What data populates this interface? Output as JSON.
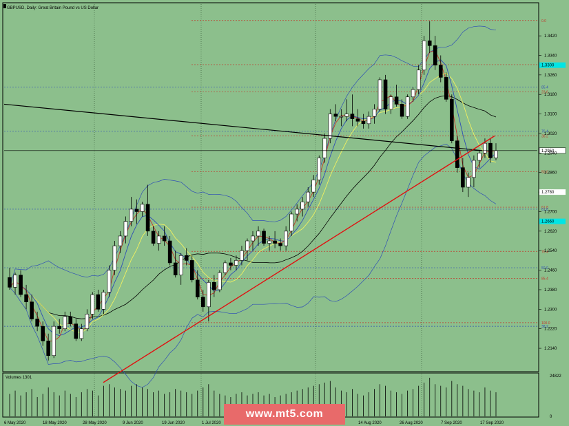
{
  "chart_data": {
    "type": "candlestick",
    "title": "GBPUSD, Daily: Great Britain Pound vs US Dollar",
    "volume_label": "Volumes 1301",
    "volume_max_label": "24822",
    "volume_zero_label": "0",
    "price_label": "1.2950",
    "level_label_1": "1.2780",
    "level_label_2": "1.2660",
    "level_label_3": "1.3300",
    "ylim": [
      1.205,
      1.355
    ],
    "yticks": [
      "1.3420",
      "1.3340",
      "1.3260",
      "1.3180",
      "1.3100",
      "1.3020",
      "1.2940",
      "1.2860",
      "1.2780",
      "1.2700",
      "1.2620",
      "1.2540",
      "1.2460",
      "1.2380",
      "1.2300",
      "1.2220",
      "1.2140"
    ],
    "xtick_labels": [
      "6 May 2020",
      "18 May 2020",
      "28 May 2020",
      "9 Jun 2020",
      "19 Jun 2020",
      "1 Jul 2020",
      "14 Aug 2020",
      "26 Aug 2020",
      "7 Sep 2020",
      "17 Sep 2020"
    ],
    "fib_levels": [
      {
        "label": "0.0",
        "price": 1.3483
      },
      {
        "label": "14.6",
        "price": 1.3302
      },
      {
        "label": "23.6",
        "price": 1.319
      },
      {
        "label": "38.2",
        "price": 1.301
      },
      {
        "label": "50.0",
        "price": 1.2864
      },
      {
        "label": "61.8",
        "price": 1.2718
      },
      {
        "label": "76.4",
        "price": 1.2537
      },
      {
        "label": "85.4",
        "price": 1.2426
      },
      {
        "label": "100.0",
        "price": 1.2245
      }
    ],
    "fib_levels_blue": [
      {
        "label": "85.4",
        "price": 1.321
      },
      {
        "label": "76.4",
        "price": 1.303
      },
      {
        "label": "61.8",
        "price": 1.271
      },
      {
        "label": "50.0",
        "price": 1.247
      },
      {
        "label": "38.2",
        "price": 1.223
      }
    ],
    "candles": [
      [
        1.243,
        1.247,
        1.238,
        1.239
      ],
      [
        1.239,
        1.245,
        1.236,
        1.244
      ],
      [
        1.244,
        1.246,
        1.235,
        1.236
      ],
      [
        1.236,
        1.24,
        1.23,
        1.233
      ],
      [
        1.233,
        1.236,
        1.225,
        1.226
      ],
      [
        1.226,
        1.229,
        1.221,
        1.223
      ],
      [
        1.223,
        1.225,
        1.215,
        1.217
      ],
      [
        1.217,
        1.22,
        1.209,
        1.211
      ],
      [
        1.211,
        1.225,
        1.21,
        1.223
      ],
      [
        1.223,
        1.226,
        1.22,
        1.222
      ],
      [
        1.222,
        1.229,
        1.221,
        1.227
      ],
      [
        1.227,
        1.229,
        1.223,
        1.224
      ],
      [
        1.224,
        1.226,
        1.217,
        1.218
      ],
      [
        1.218,
        1.224,
        1.217,
        1.222
      ],
      [
        1.222,
        1.23,
        1.221,
        1.228
      ],
      [
        1.228,
        1.237,
        1.226,
        1.236
      ],
      [
        1.236,
        1.238,
        1.229,
        1.23
      ],
      [
        1.23,
        1.238,
        1.228,
        1.237
      ],
      [
        1.237,
        1.248,
        1.235,
        1.246
      ],
      [
        1.246,
        1.258,
        1.244,
        1.256
      ],
      [
        1.256,
        1.262,
        1.253,
        1.26
      ],
      [
        1.26,
        1.268,
        1.257,
        1.266
      ],
      [
        1.266,
        1.276,
        1.264,
        1.271
      ],
      [
        1.271,
        1.275,
        1.265,
        1.27
      ],
      [
        1.27,
        1.274,
        1.268,
        1.273
      ],
      [
        1.273,
        1.281,
        1.26,
        1.262
      ],
      [
        1.262,
        1.264,
        1.256,
        1.257
      ],
      [
        1.257,
        1.262,
        1.254,
        1.26
      ],
      [
        1.26,
        1.264,
        1.256,
        1.258
      ],
      [
        1.258,
        1.26,
        1.248,
        1.249
      ],
      [
        1.249,
        1.254,
        1.243,
        1.244
      ],
      [
        1.244,
        1.253,
        1.24,
        1.252
      ],
      [
        1.252,
        1.255,
        1.248,
        1.25
      ],
      [
        1.25,
        1.252,
        1.241,
        1.242
      ],
      [
        1.242,
        1.246,
        1.234,
        1.235
      ],
      [
        1.235,
        1.238,
        1.229,
        1.231
      ],
      [
        1.231,
        1.242,
        1.225,
        1.241
      ],
      [
        1.241,
        1.244,
        1.235,
        1.238
      ],
      [
        1.238,
        1.246,
        1.237,
        1.245
      ],
      [
        1.245,
        1.25,
        1.244,
        1.249
      ],
      [
        1.249,
        1.251,
        1.246,
        1.248
      ],
      [
        1.248,
        1.252,
        1.246,
        1.25
      ],
      [
        1.25,
        1.256,
        1.248,
        1.254
      ],
      [
        1.254,
        1.259,
        1.25,
        1.258
      ],
      [
        1.258,
        1.262,
        1.254,
        1.26
      ],
      [
        1.26,
        1.264,
        1.256,
        1.262
      ],
      [
        1.262,
        1.263,
        1.256,
        1.257
      ],
      [
        1.257,
        1.26,
        1.254,
        1.258
      ],
      [
        1.258,
        1.262,
        1.255,
        1.257
      ],
      [
        1.257,
        1.259,
        1.254,
        1.256
      ],
      [
        1.256,
        1.264,
        1.254,
        1.262
      ],
      [
        1.262,
        1.27,
        1.26,
        1.269
      ],
      [
        1.269,
        1.273,
        1.266,
        1.271
      ],
      [
        1.271,
        1.276,
        1.268,
        1.274
      ],
      [
        1.274,
        1.28,
        1.272,
        1.278
      ],
      [
        1.278,
        1.285,
        1.276,
        1.283
      ],
      [
        1.283,
        1.293,
        1.281,
        1.292
      ],
      [
        1.292,
        1.302,
        1.29,
        1.3
      ],
      [
        1.3,
        1.312,
        1.298,
        1.31
      ],
      [
        1.31,
        1.314,
        1.307,
        1.309
      ],
      [
        1.309,
        1.312,
        1.305,
        1.309
      ],
      [
        1.309,
        1.316,
        1.307,
        1.31
      ],
      [
        1.31,
        1.318,
        1.305,
        1.308
      ],
      [
        1.308,
        1.312,
        1.305,
        1.307
      ],
      [
        1.307,
        1.31,
        1.304,
        1.306
      ],
      [
        1.306,
        1.311,
        1.304,
        1.309
      ],
      [
        1.309,
        1.314,
        1.306,
        1.312
      ],
      [
        1.312,
        1.325,
        1.311,
        1.324
      ],
      [
        1.324,
        1.326,
        1.31,
        1.312
      ],
      [
        1.312,
        1.318,
        1.31,
        1.317
      ],
      [
        1.317,
        1.322,
        1.313,
        1.314
      ],
      [
        1.314,
        1.316,
        1.308,
        1.309
      ],
      [
        1.309,
        1.318,
        1.308,
        1.317
      ],
      [
        1.317,
        1.321,
        1.315,
        1.32
      ],
      [
        1.32,
        1.33,
        1.318,
        1.328
      ],
      [
        1.328,
        1.342,
        1.326,
        1.34
      ],
      [
        1.34,
        1.348,
        1.335,
        1.338
      ],
      [
        1.338,
        1.342,
        1.328,
        1.33
      ],
      [
        1.33,
        1.334,
        1.323,
        1.325
      ],
      [
        1.325,
        1.327,
        1.315,
        1.316
      ],
      [
        1.316,
        1.318,
        1.298,
        1.299
      ],
      [
        1.299,
        1.301,
        1.286,
        1.288
      ],
      [
        1.288,
        1.292,
        1.278,
        1.28
      ],
      [
        1.28,
        1.286,
        1.276,
        1.284
      ],
      [
        1.284,
        1.293,
        1.28,
        1.291
      ],
      [
        1.291,
        1.295,
        1.288,
        1.294
      ],
      [
        1.294,
        1.3,
        1.292,
        1.298
      ],
      [
        1.298,
        1.3,
        1.29,
        1.292
      ],
      [
        1.292,
        1.298,
        1.291,
        1.295
      ]
    ],
    "volumes": [
      14000,
      16000,
      13000,
      15000,
      17000,
      12000,
      14000,
      18000,
      15000,
      13000,
      16000,
      14000,
      12000,
      15000,
      17000,
      16000,
      13000,
      19000,
      20000,
      18000,
      17000,
      16000,
      19000,
      20000,
      18000,
      17000,
      15000,
      16000,
      14000,
      15000,
      17000,
      16000,
      15000,
      14000,
      16000,
      18000,
      20000,
      16000,
      14000,
      13000,
      12000,
      14000,
      15000,
      13000,
      14000,
      15000,
      13000,
      14000,
      12000,
      13000,
      14000,
      15000,
      16000,
      17000,
      18000,
      19000,
      20000,
      21000,
      22000,
      18000,
      16000,
      15000,
      17000,
      14000,
      13000,
      15000,
      17000,
      20000,
      19000,
      16000,
      15000,
      14000,
      16000,
      17000,
      19000,
      21000,
      24000,
      20000,
      19000,
      18000,
      22000,
      20000,
      19000,
      17000,
      16000,
      15000,
      18000,
      16000,
      15000
    ],
    "channel_line_price": [
      1.314,
      1.295
    ],
    "trend_line_price": [
      1.2,
      1.301
    ]
  }
}
